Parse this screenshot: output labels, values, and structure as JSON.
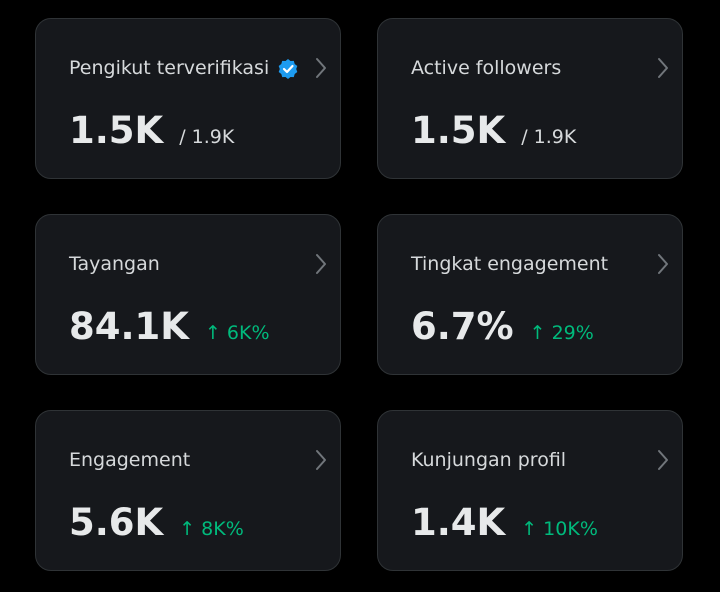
{
  "cards": [
    {
      "label": "Pengikut terverifikasi",
      "value": "1.5K",
      "total": "/ 1.9K",
      "verified": true
    },
    {
      "label": "Active followers",
      "value": "1.5K",
      "total": "/ 1.9K"
    },
    {
      "label": "Tayangan",
      "value": "84.1K",
      "change": "↑ 6K%"
    },
    {
      "label": "Tingkat engagement",
      "value": "6.7%",
      "change": "↑ 29%"
    },
    {
      "label": "Engagement",
      "value": "5.6K",
      "change": "↑ 8K%"
    },
    {
      "label": "Kunjungan profil",
      "value": "1.4K",
      "change": "↑ 10K%"
    }
  ]
}
